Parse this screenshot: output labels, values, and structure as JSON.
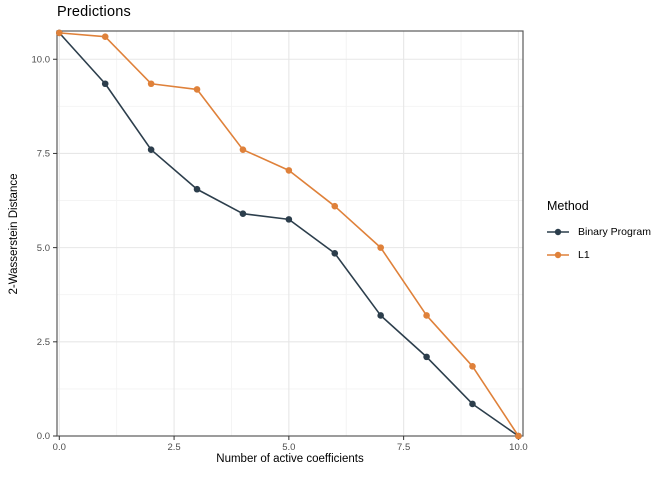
{
  "chart_data": {
    "type": "line",
    "title": "Predictions",
    "xlabel": "Number of active coefficients",
    "ylabel": "2-Wasserstein Distance",
    "x": [
      0,
      1,
      2,
      3,
      4,
      5,
      6,
      7,
      8,
      9,
      10
    ],
    "series": [
      {
        "name": "Binary Program",
        "color": "#2c3e4c",
        "values": [
          10.7,
          9.35,
          7.6,
          6.55,
          5.9,
          5.75,
          4.85,
          3.2,
          2.1,
          0.85,
          0.0
        ]
      },
      {
        "name": "L1",
        "color": "#df813a",
        "values": [
          10.7,
          10.6,
          9.35,
          9.2,
          7.6,
          7.05,
          6.1,
          5.0,
          3.2,
          1.85,
          0.0
        ]
      }
    ],
    "x_ticks": {
      "values": [
        0,
        2.5,
        5,
        7.5,
        10
      ],
      "labels": [
        "0.0",
        "2.5",
        "5.0",
        "7.5",
        "10.0"
      ]
    },
    "y_ticks": {
      "values": [
        0,
        2.5,
        5,
        7.5,
        10
      ],
      "labels": [
        "0.0",
        "2.5",
        "5.0",
        "7.5",
        "10.0"
      ]
    },
    "x_minor": [
      1.25,
      3.75,
      6.25,
      8.75
    ],
    "y_minor": [
      1.25,
      3.75,
      6.25,
      8.75
    ],
    "xlim": [
      -0.05,
      10.1
    ],
    "ylim": [
      0,
      10.75
    ],
    "grid": true,
    "legend": {
      "title": "Method",
      "position": "right"
    },
    "colors": {
      "panel_border": "#5a5a5a",
      "grid_major": "#e7e7e7",
      "grid_minor": "#f3f3f3",
      "tick_mark": "#333333",
      "tick_label": "#4d4d4d",
      "text": "#000000",
      "background": "#ffffff"
    }
  }
}
